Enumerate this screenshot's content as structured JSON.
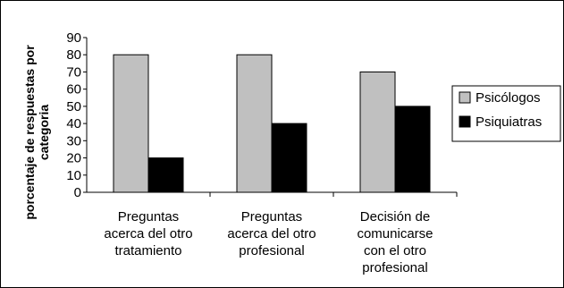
{
  "chart_data": {
    "type": "bar",
    "ylabel": "porcentaje de respuestas por categoria",
    "xlabel": "",
    "ylim": [
      0,
      90
    ],
    "yticks": [
      0,
      10,
      20,
      30,
      40,
      50,
      60,
      70,
      80,
      90
    ],
    "grid": false,
    "legend_position": "right",
    "categories": [
      [
        "Preguntas",
        "acerca del otro",
        "tratamiento"
      ],
      [
        "Preguntas",
        "acerca del otro",
        "profesional"
      ],
      [
        "Decisión de",
        "comunicarse",
        "con el otro",
        "profesional"
      ]
    ],
    "series": [
      {
        "name": "Psicólogos",
        "color": "#c0c0c0",
        "values": [
          80,
          80,
          70
        ]
      },
      {
        "name": "Psiquiatras",
        "color": "#000000",
        "values": [
          20,
          40,
          50
        ]
      }
    ]
  }
}
